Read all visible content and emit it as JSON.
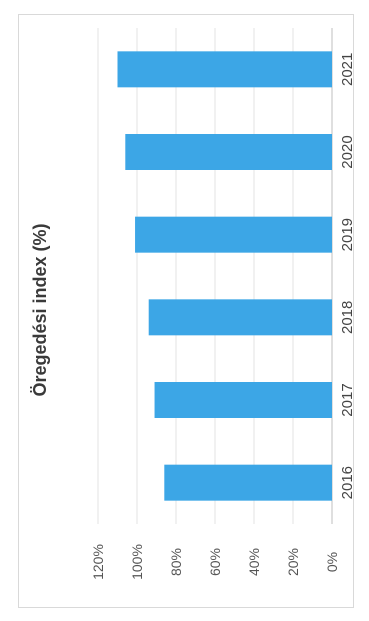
{
  "chart_data": {
    "type": "bar",
    "title": "Öregedési index (%)",
    "categories": [
      "2016",
      "2017",
      "2018",
      "2019",
      "2020",
      "2021"
    ],
    "values": [
      86,
      91,
      94,
      101,
      106,
      110
    ],
    "ylim": [
      0,
      120
    ],
    "y_ticks": [
      "0%",
      "20%",
      "40%",
      "60%",
      "80%",
      "100%",
      "120%"
    ],
    "y_tick_values": [
      0,
      20,
      40,
      60,
      80,
      100,
      120
    ],
    "grid": true,
    "bar_color": "#3ca6e6",
    "orientation": "rotated-90-ccw"
  }
}
